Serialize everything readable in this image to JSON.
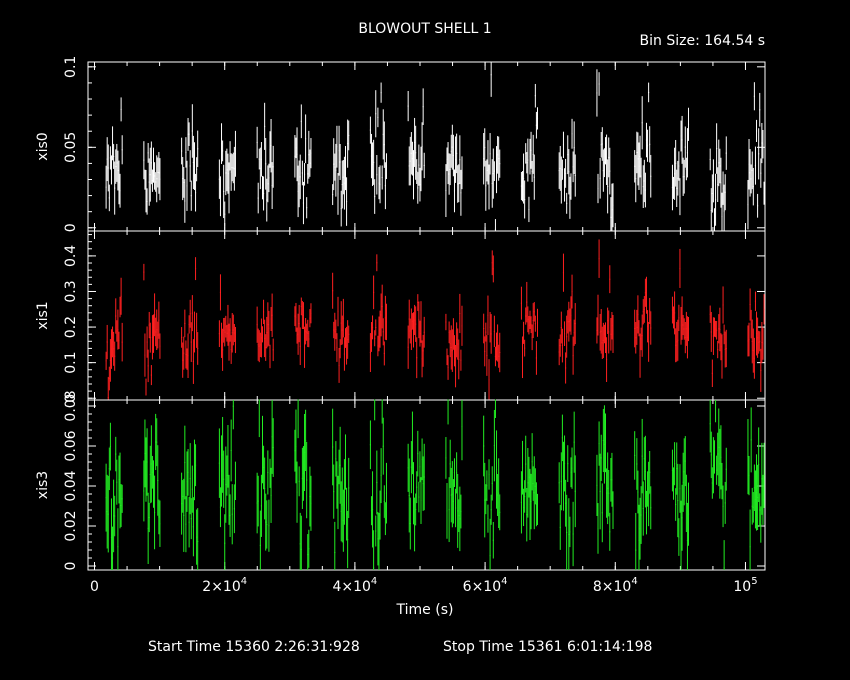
{
  "title": "BLOWOUT SHELL 1",
  "bin_size_label": "Bin Size: 164.54 s",
  "x_axis": {
    "label": "Time (s)",
    "min": -1000,
    "max": 103000,
    "ticks": [
      {
        "value": 0,
        "label": "0",
        "exp": ""
      },
      {
        "value": 20000,
        "label": "2×10",
        "exp": "4"
      },
      {
        "value": 40000,
        "label": "4×10",
        "exp": "4"
      },
      {
        "value": 60000,
        "label": "6×10",
        "exp": "4"
      },
      {
        "value": 80000,
        "label": "8×10",
        "exp": "4"
      },
      {
        "value": 100000,
        "label": "10",
        "exp": "5"
      }
    ]
  },
  "footer": {
    "start_time": "Start Time 15360  2:26:31:928",
    "stop_time": "Stop Time 15361  6:01:14:198"
  },
  "panels": [
    {
      "name": "xis0",
      "color": "#ffffff",
      "ymin": -0.002,
      "ymax": 0.103,
      "ticks": [
        {
          "value": 0,
          "label": "0"
        },
        {
          "value": 0.05,
          "label": "0.05"
        },
        {
          "value": 0.1,
          "label": "0.1"
        }
      ],
      "mean": 0.036,
      "spread": 0.012,
      "max_obs": 0.103
    },
    {
      "name": "xis1",
      "color": "#ff2020",
      "ymin": -0.005,
      "ymax": 0.47,
      "ticks": [
        {
          "value": 0,
          "label": "0"
        },
        {
          "value": 0.1,
          "label": "0.1"
        },
        {
          "value": 0.2,
          "label": "0.2"
        },
        {
          "value": 0.3,
          "label": "0.3"
        },
        {
          "value": 0.4,
          "label": "0.4"
        }
      ],
      "mean": 0.17,
      "spread": 0.045,
      "max_obs": 0.47
    },
    {
      "name": "xis3",
      "color": "#22ee22",
      "ymin": -0.002,
      "ymax": 0.083,
      "ticks": [
        {
          "value": 0,
          "label": "0"
        },
        {
          "value": 0.02,
          "label": "0.02"
        },
        {
          "value": 0.04,
          "label": "0.04"
        },
        {
          "value": 0.06,
          "label": "0.06"
        },
        {
          "value": 0.08,
          "label": "0.08"
        }
      ],
      "mean": 0.036,
      "spread": 0.014,
      "max_obs": 0.083
    }
  ],
  "chart_data": {
    "type": "scatter",
    "title": "BLOWOUT SHELL 1",
    "xlabel": "Time (s)",
    "xlim": [
      -1000,
      103000
    ],
    "bin_size_s": 164.54,
    "grid": false,
    "orbit_segments_start_s": [
      1700,
      7500,
      13300,
      19100,
      24900,
      30700,
      36500,
      42300,
      48100,
      53900,
      59700,
      65500,
      71300,
      77100,
      82900,
      88700,
      94500,
      100300
    ],
    "orbit_segment_duration_s": 2600,
    "series": [
      {
        "name": "xis0",
        "ylim": [
          0,
          0.1
        ],
        "typical_rate": 0.036,
        "peak_rate": 0.1
      },
      {
        "name": "xis1",
        "ylim": [
          0,
          0.45
        ],
        "typical_rate": 0.17,
        "peak_rate": 0.45
      },
      {
        "name": "xis3",
        "ylim": [
          0,
          0.08
        ],
        "typical_rate": 0.036,
        "peak_rate": 0.08
      }
    ]
  }
}
